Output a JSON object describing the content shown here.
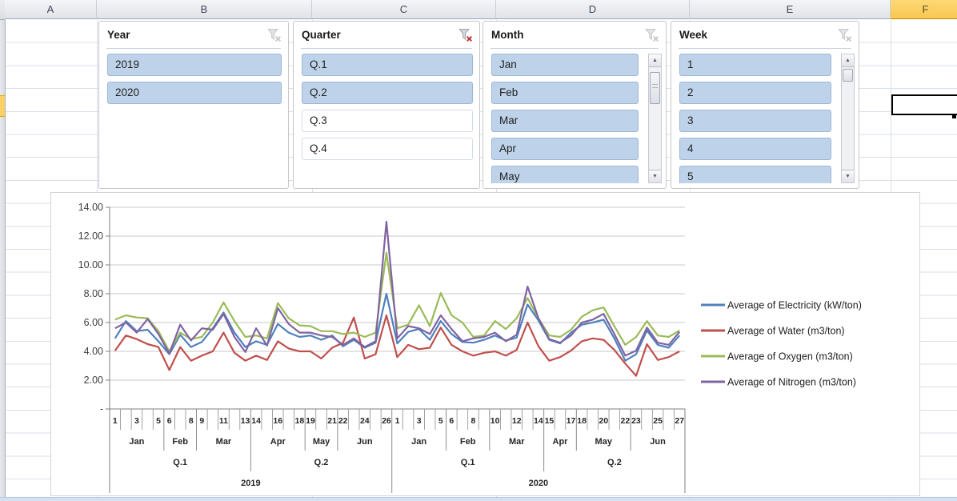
{
  "spreadsheet": {
    "column_headers": [
      "A",
      "B",
      "C",
      "D",
      "E",
      "F"
    ],
    "selected_column": "F"
  },
  "slicers": [
    {
      "title": "Year",
      "filter_active": false,
      "scrollable": false,
      "items": [
        {
          "label": "2019",
          "selected": true
        },
        {
          "label": "2020",
          "selected": true
        }
      ]
    },
    {
      "title": "Quarter",
      "filter_active": true,
      "scrollable": false,
      "items": [
        {
          "label": "Q.1",
          "selected": true
        },
        {
          "label": "Q.2",
          "selected": true
        },
        {
          "label": "Q.3",
          "selected": false
        },
        {
          "label": "Q.4",
          "selected": false
        }
      ]
    },
    {
      "title": "Month",
      "filter_active": false,
      "scrollable": true,
      "items": [
        {
          "label": "Jan",
          "selected": true
        },
        {
          "label": "Feb",
          "selected": true
        },
        {
          "label": "Mar",
          "selected": true
        },
        {
          "label": "Apr",
          "selected": true
        },
        {
          "label": "May",
          "selected": true
        }
      ]
    },
    {
      "title": "Week",
      "filter_active": false,
      "scrollable": true,
      "items": [
        {
          "label": "1",
          "selected": true
        },
        {
          "label": "2",
          "selected": true
        },
        {
          "label": "3",
          "selected": true
        },
        {
          "label": "4",
          "selected": true
        },
        {
          "label": "5",
          "selected": true
        }
      ]
    }
  ],
  "chart_data": {
    "type": "line",
    "title": "",
    "xlabel": "",
    "ylabel": "",
    "ylim": [
      0,
      14
    ],
    "ytick_step": 2,
    "y_tick_labels": [
      "-",
      "2.00",
      "4.00",
      "6.00",
      "8.00",
      "10.00",
      "12.00",
      "14.00"
    ],
    "grid": true,
    "grid_color": "#c9c9c9",
    "axis_color": "#7f7f7f",
    "legend_position": "right",
    "x_axis": {
      "years": [
        {
          "label": "2019",
          "quarters": [
            {
              "label": "Q.1",
              "months": [
                {
                  "label": "Jan",
                  "weeks": 5,
                  "week_labels": [
                    "1",
                    "3",
                    "5"
                  ]
                },
                {
                  "label": "Feb",
                  "weeks": 3,
                  "week_labels": [
                    "6",
                    "8"
                  ]
                },
                {
                  "label": "Mar",
                  "weeks": 5,
                  "week_labels": [
                    "9",
                    "11",
                    "13"
                  ]
                }
              ]
            },
            {
              "label": "Q.2",
              "months": [
                {
                  "label": "Apr",
                  "weeks": 5,
                  "week_labels": [
                    "14",
                    "16",
                    "18"
                  ]
                },
                {
                  "label": "May",
                  "weeks": 3,
                  "week_labels": [
                    "19",
                    "21"
                  ]
                },
                {
                  "label": "Jun",
                  "weeks": 5,
                  "week_labels": [
                    "22",
                    "24",
                    "26"
                  ]
                }
              ]
            }
          ]
        },
        {
          "label": "2020",
          "quarters": [
            {
              "label": "Q.1",
              "months": [
                {
                  "label": "Jan",
                  "weeks": 5,
                  "week_labels": [
                    "1",
                    "3",
                    "5"
                  ]
                },
                {
                  "label": "Feb",
                  "weeks": 4,
                  "week_labels": [
                    "6",
                    "8"
                  ]
                },
                {
                  "label": "Mar",
                  "weeks": 5,
                  "week_labels": [
                    "10",
                    "12",
                    "14"
                  ]
                }
              ]
            },
            {
              "label": "Q.2",
              "months": [
                {
                  "label": "Apr",
                  "weeks": 3,
                  "week_labels": [
                    "15",
                    "17"
                  ]
                },
                {
                  "label": "May",
                  "weeks": 5,
                  "week_labels": [
                    "18",
                    "20",
                    "22"
                  ]
                },
                {
                  "label": "Jun",
                  "weeks": 5,
                  "week_labels": [
                    "23",
                    "25",
                    "27"
                  ]
                }
              ]
            }
          ]
        }
      ]
    },
    "series": [
      {
        "name": "Average of Electricity (kW/ton)",
        "color": "#4F81BD",
        "values": [
          4.9,
          6.1,
          5.4,
          5.5,
          4.7,
          3.8,
          5.15,
          4.3,
          4.65,
          5.6,
          6.7,
          5.3,
          4.3,
          4.7,
          4.45,
          5.9,
          5.3,
          5.0,
          5.1,
          4.8,
          5.1,
          4.35,
          4.8,
          4.25,
          4.6,
          8.0,
          4.55,
          5.35,
          5.55,
          4.8,
          6.1,
          5.2,
          4.65,
          4.6,
          4.8,
          5.1,
          4.75,
          4.95,
          7.25,
          6.15,
          4.8,
          4.55,
          5.3,
          5.85,
          6.0,
          6.2,
          4.9,
          3.35,
          3.8,
          5.45,
          4.45,
          4.25,
          5.1
        ]
      },
      {
        "name": "Average of Water (m3/ton)",
        "color": "#C0504D",
        "values": [
          4.05,
          5.1,
          4.85,
          4.5,
          4.3,
          2.7,
          4.3,
          3.35,
          3.7,
          4.0,
          5.3,
          3.9,
          3.35,
          3.7,
          3.4,
          4.7,
          4.2,
          4.0,
          4.0,
          3.5,
          4.25,
          4.6,
          6.35,
          3.5,
          3.8,
          6.5,
          3.6,
          4.45,
          4.15,
          4.25,
          5.65,
          4.45,
          4.0,
          3.7,
          3.9,
          4.0,
          3.7,
          4.1,
          6.0,
          4.35,
          3.35,
          3.6,
          4.05,
          4.7,
          4.9,
          4.8,
          4.1,
          3.15,
          2.3,
          4.5,
          3.4,
          3.6,
          4.0
        ]
      },
      {
        "name": "Average of Oxygen (m3/ton)",
        "color": "#9BBB59",
        "values": [
          6.2,
          6.5,
          6.35,
          6.3,
          5.4,
          4.0,
          5.3,
          4.85,
          5.0,
          6.0,
          7.4,
          6.1,
          5.0,
          5.1,
          4.9,
          7.35,
          6.3,
          5.8,
          5.75,
          5.4,
          5.4,
          5.2,
          5.3,
          5.0,
          5.3,
          10.85,
          5.6,
          5.85,
          7.2,
          5.75,
          8.05,
          6.5,
          6.0,
          5.0,
          5.1,
          6.1,
          5.55,
          6.3,
          7.7,
          6.3,
          5.1,
          5.0,
          5.5,
          6.4,
          6.85,
          7.05,
          5.75,
          4.45,
          5.0,
          6.1,
          5.1,
          5.0,
          5.45
        ]
      },
      {
        "name": "Average of Nitrogen (m3/ton)",
        "color": "#8064A2",
        "values": [
          5.6,
          6.0,
          5.3,
          6.25,
          5.2,
          3.85,
          5.85,
          4.75,
          5.6,
          5.5,
          6.6,
          5.0,
          3.95,
          5.6,
          4.4,
          7.0,
          5.9,
          5.3,
          5.3,
          5.1,
          5.0,
          4.45,
          4.9,
          4.3,
          4.7,
          13.0,
          4.9,
          5.75,
          5.6,
          5.2,
          6.5,
          5.55,
          4.7,
          4.9,
          5.0,
          5.3,
          4.7,
          5.15,
          8.5,
          6.3,
          4.85,
          4.6,
          5.1,
          6.0,
          6.2,
          6.6,
          5.2,
          3.7,
          4.05,
          5.65,
          4.6,
          4.45,
          5.35
        ]
      }
    ]
  }
}
